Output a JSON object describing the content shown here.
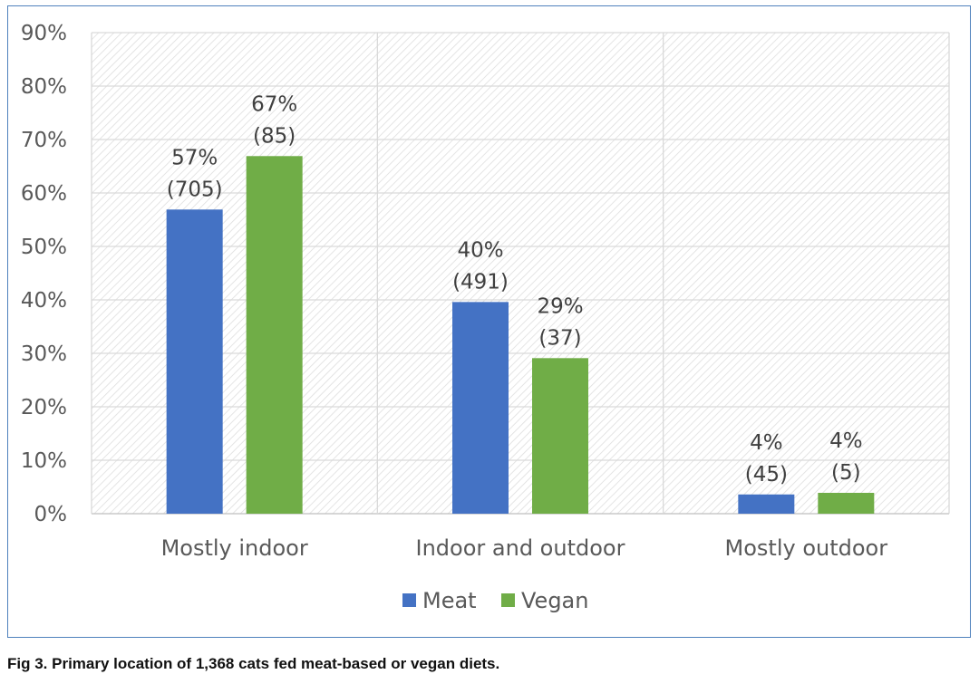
{
  "chart_data": {
    "type": "bar",
    "title": "",
    "xlabel": "",
    "ylabel": "",
    "ylim": [
      0,
      90
    ],
    "yticks": [
      "0%",
      "10%",
      "20%",
      "30%",
      "40%",
      "50%",
      "60%",
      "70%",
      "80%",
      "90%"
    ],
    "ytick_values": [
      0,
      10,
      20,
      30,
      40,
      50,
      60,
      70,
      80,
      90
    ],
    "categories": [
      "Mostly indoor",
      "Indoor and outdoor",
      "Mostly outdoor"
    ],
    "series": [
      {
        "name": "Meat",
        "color": "#4472c4",
        "values": [
          57,
          40,
          4
        ],
        "labels_pct": [
          "57%",
          "40%",
          "4%"
        ],
        "labels_count": [
          "(705)",
          "(491)",
          "(45)"
        ],
        "bar_values": [
          56.9,
          39.6,
          3.6
        ]
      },
      {
        "name": "Vegan",
        "color": "#70ad47",
        "values": [
          67,
          29,
          4
        ],
        "labels_pct": [
          "67%",
          "29%",
          "4%"
        ],
        "labels_count": [
          "(85)",
          "(37)",
          "(5)"
        ],
        "bar_values": [
          66.9,
          29.1,
          3.9
        ]
      }
    ],
    "legend_position": "bottom",
    "grid": true
  },
  "caption": "Fig 3. Primary location of 1,368 cats fed meat-based or vegan diets.",
  "colors": {
    "frame": "#4f81bd",
    "grid": "#d9d9d9",
    "hatch": "#e3e3e3"
  }
}
